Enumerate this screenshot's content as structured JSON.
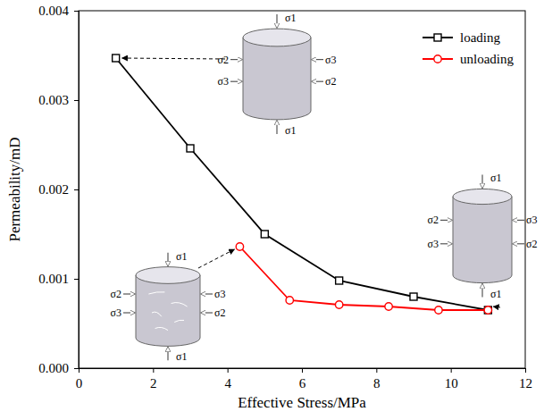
{
  "chart_data": {
    "type": "line",
    "x_label": "Effective Stress/MPa",
    "y_label": "Permeability/mD",
    "xlim": [
      0,
      12
    ],
    "xticks": [
      0,
      2,
      4,
      6,
      8,
      10,
      12
    ],
    "ylim": [
      0,
      0.004
    ],
    "yticks": [
      {
        "value": 0,
        "label": "0.000"
      },
      {
        "value": 0.001,
        "label": "0.001"
      },
      {
        "value": 0.002,
        "label": "0.002"
      },
      {
        "value": 0.003,
        "label": "0.003"
      },
      {
        "value": 0.004,
        "label": "0.004"
      }
    ],
    "legend": "upper right",
    "grid": false,
    "annotations": [
      "σ1",
      "σ2",
      "σ3"
    ],
    "series": [
      {
        "name": "loading",
        "color": "#000000",
        "marker": "square",
        "x": [
          1,
          3,
          5,
          7,
          9,
          11
        ],
        "values": [
          0.00347,
          0.00246,
          0.0015,
          0.00098,
          0.0008,
          0.00065
        ]
      },
      {
        "name": "unloading",
        "color": "#ff0000",
        "marker": "circle",
        "x": [
          4.33,
          5.67,
          7,
          8.33,
          9.67,
          11
        ],
        "values": [
          0.00136,
          0.00076,
          0.00071,
          0.00069,
          0.00065,
          0.00065
        ]
      }
    ]
  }
}
